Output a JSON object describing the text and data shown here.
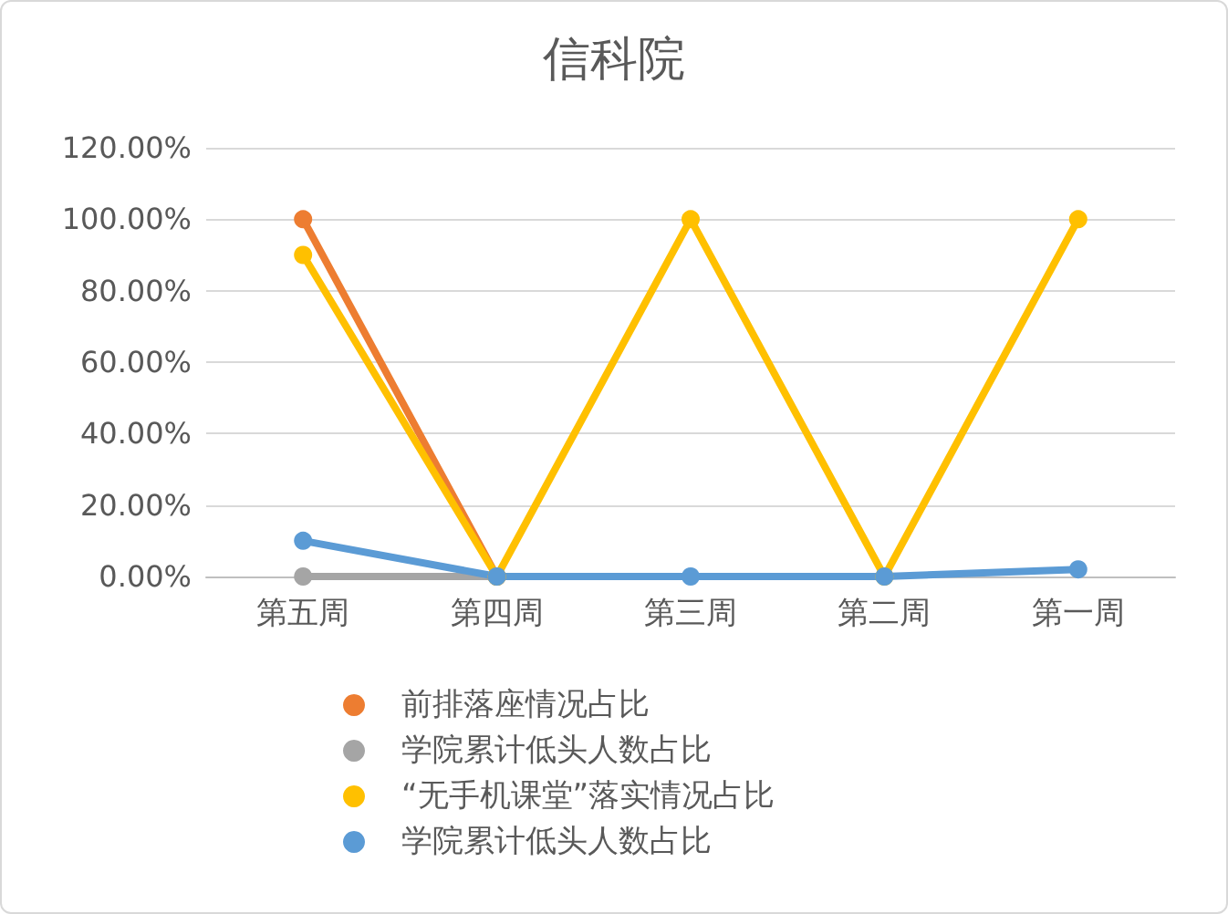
{
  "chart_data": {
    "type": "line",
    "title": "信科院",
    "categories": [
      "第五周",
      "第四周",
      "第三周",
      "第二周",
      "第一周"
    ],
    "series": [
      {
        "name": "前排落座情况占比",
        "color": "#ed7d31",
        "values": [
          100,
          0,
          null,
          null,
          null
        ]
      },
      {
        "name": "学院累计低头人数占比",
        "color": "#a5a5a5",
        "values": [
          0,
          0,
          null,
          null,
          null
        ]
      },
      {
        "name": "“无手机课堂”落实情况占比",
        "color": "#ffc000",
        "values": [
          90,
          0,
          100,
          0,
          100
        ]
      },
      {
        "name": "学院累计低头人数占比",
        "color": "#5b9bd5",
        "values": [
          10,
          0,
          0,
          0,
          2
        ]
      }
    ],
    "ylim": [
      0,
      120
    ],
    "yticks": [
      {
        "value": 0,
        "label": "0.00%"
      },
      {
        "value": 20,
        "label": "20.00%"
      },
      {
        "value": 40,
        "label": "40.00%"
      },
      {
        "value": 60,
        "label": "60.00%"
      },
      {
        "value": 80,
        "label": "80.00%"
      },
      {
        "value": 100,
        "label": "100.00%"
      },
      {
        "value": 120,
        "label": "120.00%"
      }
    ],
    "grid": "y",
    "legend": "bottom",
    "marker": "circle",
    "line_style": "solid"
  }
}
